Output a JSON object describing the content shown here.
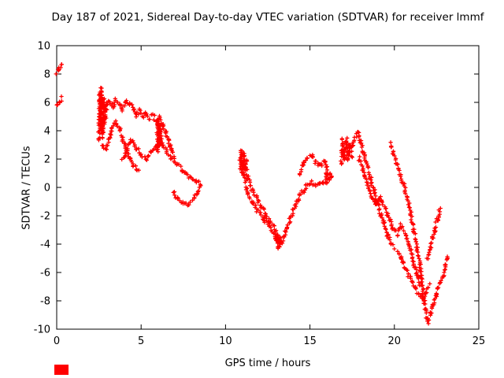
{
  "title": "Day 187 of 2021, Sidereal Day-to-day VTEC variation (SDTVAR) for receiver lmmf",
  "xlabel": "GPS time / hours",
  "ylabel": "SDTVAR / TECUs",
  "colors": {
    "axis": "#000000",
    "background": "#ffffff",
    "series": "#ff0000"
  },
  "chart_data": {
    "type": "scatter",
    "title": "Day 187 of 2021, Sidereal Day-to-day VTEC variation (SDTVAR) for receiver lmmf",
    "xlabel": "GPS time / hours",
    "ylabel": "SDTVAR / TECUs",
    "xlim": [
      0,
      25
    ],
    "ylim": [
      -10,
      10
    ],
    "xticks": [
      0,
      5,
      10,
      15,
      20,
      25
    ],
    "yticks": [
      -10,
      -8,
      -6,
      -4,
      -2,
      0,
      2,
      4,
      6,
      8,
      10
    ],
    "xtick_labels": [
      "0",
      "5",
      "10",
      "15",
      "20",
      "25"
    ],
    "ytick_labels": [
      "-10",
      "-8",
      "-6",
      "-4",
      "-2",
      "0",
      "2",
      "4",
      "6",
      "8",
      "10"
    ],
    "grid": false,
    "legend": "none",
    "marker": "plus",
    "series": [
      {
        "name": "SDTVAR",
        "color": "#ff0000",
        "segments": [
          [
            [
              0.0,
              8.1
            ],
            [
              0.15,
              8.45
            ],
            [
              0.3,
              8.75
            ]
          ],
          [
            [
              0.0,
              5.7
            ],
            [
              0.15,
              6.0
            ],
            [
              0.3,
              6.3
            ]
          ],
          [
            [
              2.5,
              3.2
            ],
            [
              2.55,
              6.6
            ],
            [
              2.6,
              4.0
            ],
            [
              2.65,
              6.9
            ],
            [
              2.7,
              3.6
            ],
            [
              2.78,
              6.3
            ],
            [
              2.85,
              4.6
            ],
            [
              2.95,
              5.9
            ]
          ],
          [
            [
              2.9,
              5.6
            ],
            [
              3.1,
              6.1
            ],
            [
              3.3,
              5.7
            ],
            [
              3.5,
              6.2
            ],
            [
              3.7,
              5.9
            ],
            [
              3.9,
              5.5
            ],
            [
              4.1,
              6.0
            ],
            [
              4.3,
              5.9
            ],
            [
              4.5,
              5.6
            ],
            [
              4.7,
              5.1
            ],
            [
              4.9,
              5.4
            ],
            [
              5.1,
              5.0
            ],
            [
              5.3,
              5.3
            ],
            [
              5.5,
              4.9
            ],
            [
              5.7,
              5.1
            ],
            [
              5.9,
              4.6
            ],
            [
              6.1,
              4.9
            ],
            [
              6.3,
              4.4
            ],
            [
              6.5,
              3.7
            ],
            [
              6.7,
              3.0
            ],
            [
              6.9,
              2.4
            ],
            [
              7.0,
              2.1
            ]
          ],
          [
            [
              2.7,
              3.0
            ],
            [
              2.9,
              2.7
            ],
            [
              3.1,
              3.3
            ],
            [
              3.3,
              4.2
            ],
            [
              3.5,
              4.6
            ],
            [
              3.7,
              4.3
            ],
            [
              3.9,
              3.4
            ],
            [
              4.1,
              2.8
            ],
            [
              4.3,
              2.1
            ],
            [
              4.5,
              1.6
            ],
            [
              4.7,
              1.3
            ],
            [
              4.9,
              1.1
            ]
          ],
          [
            [
              3.9,
              1.9
            ],
            [
              4.15,
              2.7
            ],
            [
              4.4,
              3.3
            ],
            [
              4.7,
              2.8
            ],
            [
              5.0,
              2.3
            ],
            [
              5.3,
              2.0
            ],
            [
              5.6,
              2.5
            ],
            [
              5.9,
              2.9
            ],
            [
              6.2,
              3.2
            ],
            [
              6.5,
              2.6
            ],
            [
              6.8,
              2.0
            ],
            [
              7.1,
              1.7
            ],
            [
              7.4,
              1.3
            ],
            [
              7.7,
              0.9
            ],
            [
              8.0,
              0.6
            ],
            [
              8.3,
              0.4
            ],
            [
              8.5,
              0.2
            ]
          ],
          [
            [
              5.95,
              2.5
            ],
            [
              6.0,
              4.7
            ],
            [
              6.05,
              3.0
            ],
            [
              6.12,
              4.3
            ],
            [
              6.2,
              2.9
            ]
          ],
          [
            [
              6.9,
              -0.3
            ],
            [
              7.2,
              -0.8
            ],
            [
              7.5,
              -1.1
            ],
            [
              7.8,
              -1.2
            ],
            [
              8.1,
              -0.8
            ],
            [
              8.35,
              -0.3
            ],
            [
              8.55,
              0.2
            ]
          ],
          [
            [
              10.85,
              1.4
            ],
            [
              10.95,
              2.6
            ],
            [
              11.0,
              1.0
            ],
            [
              11.08,
              2.4
            ],
            [
              11.15,
              1.3
            ],
            [
              11.25,
              2.0
            ]
          ],
          [
            [
              11.1,
              1.8
            ],
            [
              11.35,
              0.6
            ],
            [
              11.6,
              -0.2
            ],
            [
              11.85,
              -0.7
            ],
            [
              12.1,
              -1.3
            ],
            [
              12.35,
              -1.9
            ],
            [
              12.6,
              -2.4
            ],
            [
              12.85,
              -2.8
            ],
            [
              13.05,
              -3.4
            ],
            [
              13.2,
              -3.9
            ]
          ],
          [
            [
              11.05,
              1.0
            ],
            [
              11.3,
              -0.3
            ],
            [
              11.55,
              -1.0
            ],
            [
              11.8,
              -1.5
            ],
            [
              12.05,
              -1.8
            ],
            [
              12.3,
              -2.2
            ],
            [
              12.55,
              -2.7
            ],
            [
              12.8,
              -3.2
            ],
            [
              13.0,
              -3.7
            ],
            [
              13.15,
              -4.1
            ]
          ],
          [
            [
              13.1,
              -3.3
            ],
            [
              13.15,
              -4.2
            ],
            [
              13.22,
              -3.6
            ],
            [
              13.3,
              -4.0
            ]
          ],
          [
            [
              13.3,
              -4.0
            ],
            [
              13.55,
              -3.1
            ],
            [
              13.8,
              -2.3
            ],
            [
              14.05,
              -1.5
            ],
            [
              14.3,
              -0.8
            ],
            [
              14.55,
              -0.3
            ],
            [
              14.8,
              0.1
            ],
            [
              15.05,
              0.4
            ],
            [
              15.3,
              0.1
            ],
            [
              15.55,
              0.2
            ],
            [
              15.8,
              0.4
            ],
            [
              16.0,
              0.5
            ]
          ],
          [
            [
              14.35,
              0.9
            ],
            [
              14.6,
              1.7
            ],
            [
              14.85,
              2.1
            ],
            [
              15.1,
              2.2
            ],
            [
              15.35,
              1.8
            ],
            [
              15.6,
              1.5
            ],
            [
              15.85,
              1.9
            ],
            [
              16.05,
              1.3
            ]
          ],
          [
            [
              15.95,
              0.4
            ],
            [
              16.0,
              1.0
            ],
            [
              16.1,
              0.5
            ],
            [
              16.2,
              0.95
            ],
            [
              16.3,
              0.6
            ]
          ],
          [
            [
              16.85,
              1.7
            ],
            [
              16.95,
              3.3
            ],
            [
              17.05,
              1.9
            ],
            [
              17.15,
              3.4
            ],
            [
              17.25,
              2.0
            ],
            [
              17.35,
              3.1
            ],
            [
              17.45,
              2.2
            ]
          ],
          [
            [
              17.3,
              2.6
            ],
            [
              17.55,
              3.1
            ],
            [
              17.8,
              3.9
            ],
            [
              18.0,
              3.3
            ],
            [
              18.2,
              2.3
            ],
            [
              18.4,
              1.4
            ],
            [
              18.6,
              0.6
            ],
            [
              18.8,
              -0.3
            ],
            [
              19.0,
              -1.1
            ],
            [
              19.2,
              -1.9
            ],
            [
              19.4,
              -2.6
            ],
            [
              19.6,
              -3.3
            ],
            [
              19.8,
              -3.9
            ],
            [
              19.95,
              -4.2
            ]
          ],
          [
            [
              17.9,
              2.1
            ],
            [
              18.15,
              1.2
            ],
            [
              18.4,
              0.3
            ],
            [
              18.65,
              -0.6
            ],
            [
              18.9,
              -1.3
            ],
            [
              19.15,
              -0.7
            ],
            [
              19.4,
              -1.3
            ],
            [
              19.65,
              -2.1
            ],
            [
              19.9,
              -2.8
            ],
            [
              20.15,
              -3.3
            ],
            [
              20.4,
              -2.7
            ],
            [
              20.65,
              -3.3
            ],
            [
              20.9,
              -4.2
            ],
            [
              21.15,
              -5.3
            ],
            [
              21.4,
              -6.3
            ],
            [
              21.6,
              -7.0
            ]
          ],
          [
            [
              19.75,
              3.1
            ],
            [
              19.95,
              2.5
            ],
            [
              20.15,
              1.7
            ],
            [
              20.35,
              0.9
            ],
            [
              20.55,
              0.2
            ],
            [
              20.75,
              -0.7
            ],
            [
              20.95,
              -1.8
            ],
            [
              21.15,
              -3.0
            ],
            [
              21.35,
              -4.3
            ],
            [
              21.5,
              -5.3
            ],
            [
              21.6,
              -6.3
            ],
            [
              21.7,
              -7.3
            ],
            [
              21.8,
              -8.3
            ],
            [
              21.9,
              -9.1
            ],
            [
              22.0,
              -9.5
            ],
            [
              22.15,
              -8.9
            ],
            [
              22.3,
              -8.2
            ],
            [
              22.45,
              -7.6
            ],
            [
              22.6,
              -7.1
            ],
            [
              22.75,
              -6.7
            ],
            [
              22.9,
              -6.2
            ],
            [
              23.05,
              -5.5
            ],
            [
              23.15,
              -4.8
            ]
          ],
          [
            [
              20.2,
              -4.5
            ],
            [
              20.45,
              -5.2
            ],
            [
              20.7,
              -5.8
            ],
            [
              20.95,
              -6.4
            ],
            [
              21.2,
              -7.0
            ],
            [
              21.45,
              -7.5
            ],
            [
              21.7,
              -7.9
            ],
            [
              21.9,
              -7.3
            ],
            [
              22.1,
              -6.9
            ]
          ],
          [
            [
              21.95,
              -5.1
            ],
            [
              22.1,
              -4.4
            ],
            [
              22.25,
              -3.7
            ],
            [
              22.4,
              -3.0
            ],
            [
              22.55,
              -2.3
            ],
            [
              22.65,
              -1.8
            ],
            [
              22.72,
              -1.5
            ]
          ]
        ]
      }
    ]
  }
}
